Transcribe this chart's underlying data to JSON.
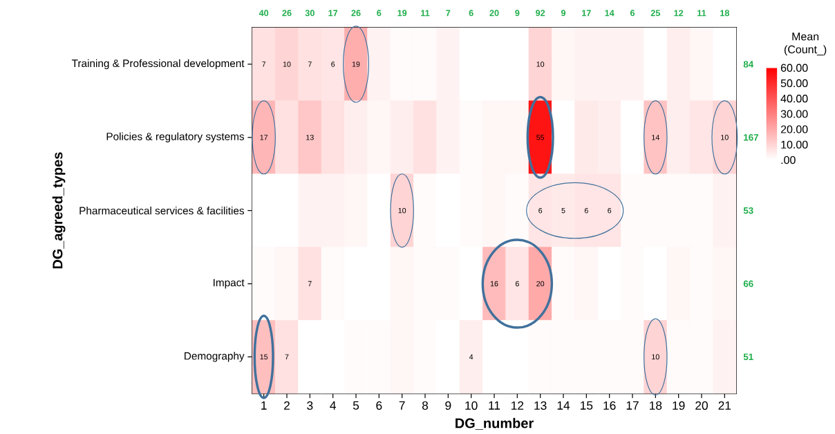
{
  "chart_data": {
    "type": "heatmap",
    "xlabel": "DG_number",
    "ylabel": "DG_agreed_types",
    "clabel": "Mean (Count_)",
    "categories": [
      "1",
      "2",
      "3",
      "4",
      "5",
      "6",
      "7",
      "8",
      "9",
      "10",
      "11",
      "12",
      "13",
      "14",
      "15",
      "16",
      "17",
      "18",
      "19",
      "20",
      "21"
    ],
    "y_categories": [
      "Training & Professional development",
      "Policies & regulatory systems",
      "Pharmaceutical services & facilities",
      "Impact",
      "Demography"
    ],
    "y2_categories": [
      "84",
      "167",
      "53",
      "66",
      "51"
    ],
    "cells": [
      [
        7,
        10,
        7,
        6,
        19,
        3,
        1,
        1,
        3,
        0,
        0,
        0,
        10,
        2,
        3,
        3,
        3,
        0,
        4,
        2,
        0
      ],
      [
        17,
        7,
        13,
        7,
        4,
        2,
        4,
        7,
        3,
        1,
        2,
        2,
        55,
        0,
        5,
        4,
        0,
        14,
        4,
        6,
        10
      ],
      [
        0,
        0,
        3,
        3,
        2,
        0,
        10,
        1,
        0,
        1,
        2,
        1,
        6,
        5,
        6,
        6,
        1,
        1,
        1,
        1,
        3
      ],
      [
        1,
        2,
        7,
        1,
        0,
        0,
        2,
        1,
        1,
        0,
        16,
        6,
        20,
        1,
        2,
        0,
        1,
        0,
        2,
        1,
        2
      ],
      [
        15,
        7,
        0,
        0,
        1,
        1,
        2,
        1,
        0,
        4,
        0,
        0,
        1,
        1,
        1,
        1,
        1,
        10,
        1,
        1,
        3
      ]
    ],
    "cell_labels": [
      [
        "7",
        "10",
        "7",
        "6",
        "19",
        null,
        null,
        null,
        null,
        null,
        null,
        null,
        "10",
        null,
        null,
        null,
        null,
        null,
        null,
        null,
        null
      ],
      [
        "17",
        null,
        "13",
        null,
        null,
        null,
        null,
        null,
        null,
        null,
        null,
        null,
        "55",
        null,
        null,
        null,
        null,
        "14",
        null,
        null,
        "10"
      ],
      [
        null,
        null,
        null,
        null,
        null,
        null,
        "10",
        null,
        null,
        null,
        null,
        null,
        "6",
        "5",
        "6",
        "6",
        null,
        null,
        null,
        null,
        null
      ],
      [
        null,
        null,
        "7",
        null,
        null,
        null,
        null,
        null,
        null,
        null,
        "16",
        "6",
        "20",
        null,
        null,
        null,
        null,
        null,
        null,
        null,
        null
      ],
      [
        "15",
        "7",
        null,
        null,
        null,
        null,
        null,
        null,
        null,
        "4",
        null,
        null,
        null,
        null,
        null,
        null,
        null,
        "10",
        null,
        null,
        null
      ]
    ],
    "clim": [
      0,
      60
    ],
    "cticks": [
      {
        "value": 60,
        "label": "60.00"
      },
      {
        "value": 50,
        "label": "50.00"
      },
      {
        "value": 40,
        "label": "40.00"
      },
      {
        "value": 30,
        "label": "30.00"
      },
      {
        "value": 20,
        "label": "20.00"
      },
      {
        "value": 10,
        "label": "10.00"
      },
      {
        "value": 0,
        "label": ".00"
      }
    ],
    "annotations": [
      "40",
      "26",
      "30",
      "17",
      "26",
      "6",
      "19",
      "11",
      "7",
      "6",
      "20",
      "9",
      "92",
      "9",
      "17",
      "14",
      "6",
      "25",
      "12",
      "11",
      "18"
    ]
  }
}
